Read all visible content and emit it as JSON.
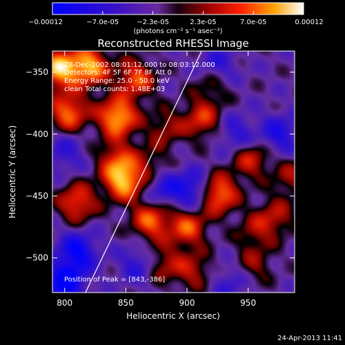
{
  "chart_data": {
    "type": "heatmap",
    "title": "Reconstructed RHESSI Image",
    "xlabel": "Heliocentric X (arcsec)",
    "ylabel": "Heliocentric Y (arcsec)",
    "xlim": [
      790,
      988
    ],
    "ylim": [
      -528,
      -333
    ],
    "x_ticks": [
      800,
      850,
      900,
      950
    ],
    "y_ticks": [
      -350,
      -400,
      -450,
      -500
    ],
    "colorbar": {
      "range": [
        -0.00012,
        0.00012
      ],
      "ticks": [
        "-0.00012",
        "-7.0e-05",
        "-2.3e-05",
        "2.3e-05",
        "7.0e-05",
        "0.00012"
      ],
      "unit_label": "(photons cm⁻² s⁻¹ asec⁻²)"
    },
    "info_lines": [
      "28-Dec-2002 08:01:12.000 to 08:03:12.000",
      "Detectors: 4F 5F 6F 7F 8F  Att 0",
      "Energy Range: 25.0 - 50.0 keV",
      "clean    Total counts: 1.48E+03"
    ],
    "peak_label": "Position of Peak = [843,-386]",
    "limb_line": [
      [
        817,
        -528
      ],
      [
        912,
        -333
      ]
    ],
    "sources": [
      {
        "x": 795,
        "y": -347,
        "v": 1.0
      },
      {
        "x": 820,
        "y": -345,
        "v": 0.95
      },
      {
        "x": 803,
        "y": -382,
        "v": 0.8
      },
      {
        "x": 843,
        "y": -386,
        "v": 1.0
      },
      {
        "x": 858,
        "y": -355,
        "v": 0.7
      },
      {
        "x": 842,
        "y": -420,
        "v": 0.55
      },
      {
        "x": 848,
        "y": -438,
        "v": 0.95
      },
      {
        "x": 810,
        "y": -455,
        "v": 0.7
      },
      {
        "x": 870,
        "y": -470,
        "v": 0.75
      },
      {
        "x": 900,
        "y": -475,
        "v": 0.7
      },
      {
        "x": 912,
        "y": -388,
        "v": 0.6
      },
      {
        "x": 952,
        "y": -420,
        "v": 0.55
      },
      {
        "x": 925,
        "y": -448,
        "v": 0.9
      },
      {
        "x": 972,
        "y": -467,
        "v": 0.45
      },
      {
        "x": 955,
        "y": -478,
        "v": 0.35
      },
      {
        "x": 985,
        "y": -435,
        "v": 0.4
      },
      {
        "x": 905,
        "y": -510,
        "v": 0.45
      },
      {
        "x": 880,
        "y": -505,
        "v": 0.45
      },
      {
        "x": 955,
        "y": -505,
        "v": 0.35
      },
      {
        "x": 920,
        "y": -360,
        "v": 0.35
      },
      {
        "x": 882,
        "y": -395,
        "v": 0.4
      },
      {
        "x": 870,
        "y": -425,
        "v": 0.35
      },
      {
        "x": 810,
        "y": -495,
        "v": -0.7
      },
      {
        "x": 800,
        "y": -520,
        "v": -0.8
      },
      {
        "x": 860,
        "y": -505,
        "v": -0.4
      },
      {
        "x": 905,
        "y": -445,
        "v": -0.6
      },
      {
        "x": 880,
        "y": -443,
        "v": -0.45
      },
      {
        "x": 975,
        "y": -400,
        "v": -0.5
      },
      {
        "x": 940,
        "y": -400,
        "v": -0.4
      },
      {
        "x": 925,
        "y": -345,
        "v": -0.4
      },
      {
        "x": 800,
        "y": -415,
        "v": -0.35
      },
      {
        "x": 935,
        "y": -520,
        "v": -0.3
      }
    ]
  }
}
